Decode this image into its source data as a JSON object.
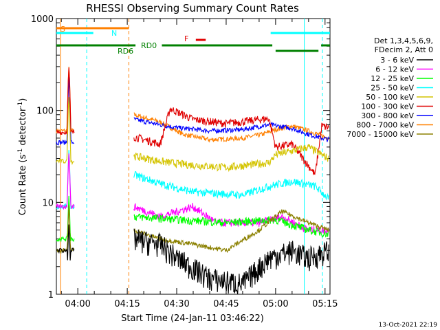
{
  "chart_data": {
    "type": "line",
    "title": "RHESSI Observing Summary Count Rates",
    "xlabel": "Start Time (24-Jan-11 03:46:22)",
    "ylabel_main": "Count Rate (s",
    "ylabel_sup1": "-1",
    "ylabel_mid": " detector",
    "ylabel_sup2": "-1",
    "ylabel_end": ")",
    "yscale": "log",
    "ylim": [
      1,
      1000
    ],
    "xlim_minutes": [
      -6.5,
      76.5
    ],
    "xticks": [
      {
        "t": 0,
        "label": "04:00"
      },
      {
        "t": 15,
        "label": "04:15"
      },
      {
        "t": 30,
        "label": "04:30"
      },
      {
        "t": 45,
        "label": "04:45"
      },
      {
        "t": 60,
        "label": "05:00"
      },
      {
        "t": 75,
        "label": "05:15"
      }
    ],
    "yticks": [
      {
        "v": 1,
        "label": "1"
      },
      {
        "v": 10,
        "label": "10"
      },
      {
        "v": 100,
        "label": "100"
      },
      {
        "v": 1000,
        "label": "1000"
      }
    ],
    "legend_header": [
      "Det 1,3,4,5,6,9,",
      "FDecim 2, Att 0"
    ],
    "series": [
      {
        "name": "3 - 6 keV",
        "color": "#000000"
      },
      {
        "name": "6 - 12 keV",
        "color": "#ff00ff"
      },
      {
        "name": "12 - 25 keV",
        "color": "#00ff00"
      },
      {
        "name": "25 - 50 keV",
        "color": "#00ffff"
      },
      {
        "name": "50 - 100 keV",
        "color": "#d4c400"
      },
      {
        "name": "100 - 300 keV",
        "color": "#e00000"
      },
      {
        "name": "300 - 800 keV",
        "color": "#0000ff"
      },
      {
        "name": "800 - 7000 keV",
        "color": "#ff8000"
      },
      {
        "name": "7000 - 15000 keV",
        "color": "#8b8000"
      }
    ],
    "flags": [
      {
        "label": "S",
        "color": "#ff8000"
      },
      {
        "label": "N",
        "color": "#00ffff"
      },
      {
        "label": "RD0",
        "color": "#008000"
      },
      {
        "label": "RD6",
        "color": "#008000"
      },
      {
        "label": "F",
        "color": "#e00000"
      }
    ],
    "footer": "13-Oct-2021 22:19"
  }
}
